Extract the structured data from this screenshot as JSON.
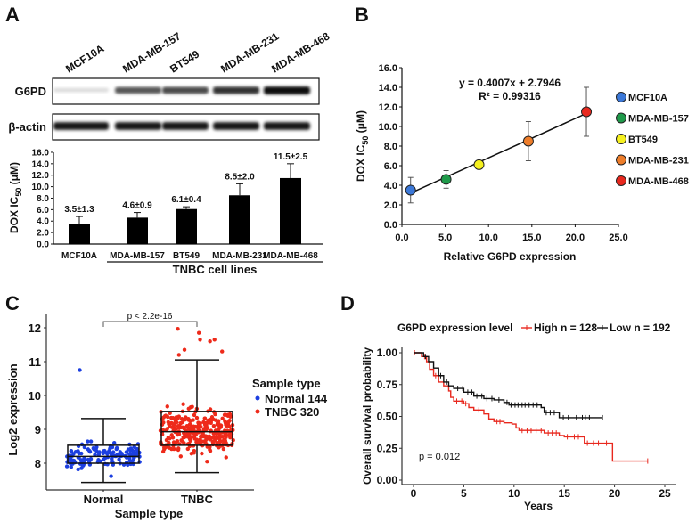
{
  "panels": {
    "a": "A",
    "b": "B",
    "c": "C",
    "d": "D"
  },
  "blot": {
    "lanes": [
      "MCF10A",
      "MDA-MB-157",
      "BT549",
      "MDA-MB-231",
      "MDA-MB-468"
    ],
    "rows": [
      {
        "label": "G6PD",
        "band_intensity": [
          0.15,
          0.7,
          0.75,
          0.85,
          1.0
        ]
      },
      {
        "label": "β-actin",
        "band_intensity": [
          0.95,
          0.95,
          0.95,
          0.95,
          0.95
        ]
      }
    ]
  },
  "chart_data": [
    {
      "id": "a-bar",
      "type": "bar",
      "categories": [
        "MCF10A",
        "MDA-MB-157",
        "BT549",
        "MDA-MB-231",
        "MDA-MB-468"
      ],
      "values": [
        3.5,
        4.6,
        6.1,
        8.5,
        11.5
      ],
      "errors": [
        1.3,
        0.9,
        0.4,
        2.0,
        2.5
      ],
      "data_labels": [
        "3.5±1.3",
        "4.6±0.9",
        "6.1±0.4",
        "8.5±2.0",
        "11.5±2.5"
      ],
      "ylabel_main": "DOX IC",
      "ylabel_sub": "50",
      "ylabel_unit": " (μM)",
      "group_label": "TNBC cell lines",
      "ylim": [
        0,
        16
      ],
      "yticks": [
        "0.0",
        "2.0",
        "4.0",
        "6.0",
        "8.0",
        "10.0",
        "12.0",
        "14.0",
        "16.0"
      ],
      "bar_color": "#000000"
    },
    {
      "id": "b-scatter",
      "type": "scatter",
      "series": [
        {
          "name": "MCF10A",
          "x": 1.0,
          "y": 3.5,
          "err": 1.3,
          "color": "#3b78d8"
        },
        {
          "name": "MDA-MB-157",
          "x": 5.1,
          "y": 4.6,
          "err": 0.9,
          "color": "#1f9a4a"
        },
        {
          "name": "BT549",
          "x": 8.9,
          "y": 6.1,
          "err": 0.4,
          "color": "#f5f01e"
        },
        {
          "name": "MDA-MB-231",
          "x": 14.6,
          "y": 8.5,
          "err": 2.0,
          "color": "#ee7d2a"
        },
        {
          "name": "MDA-MB-468",
          "x": 21.3,
          "y": 11.5,
          "err": 2.5,
          "color": "#e8281e"
        }
      ],
      "trendline": {
        "slope": 0.4007,
        "intercept": 2.7946,
        "equation": "y = 0.4007x + 2.7946",
        "r2": "R² = 0.99316"
      },
      "xlabel": "Relative G6PD expression",
      "ylabel_main": "DOX IC",
      "ylabel_sub": "50",
      "ylabel_unit": " (μM)",
      "xlim": [
        0,
        25
      ],
      "ylim": [
        0,
        16
      ],
      "xticks": [
        "0.0",
        "5.0",
        "10.0",
        "15.0",
        "20.0",
        "25.0"
      ],
      "yticks": [
        "0.0",
        "2.0",
        "4.0",
        "6.0",
        "8.0",
        "10.0",
        "12.0",
        "14.0",
        "16.0"
      ],
      "legend_position": "right"
    },
    {
      "id": "c-box",
      "type": "box",
      "categories": [
        "Normal",
        "TNBC"
      ],
      "groups": [
        {
          "name": "Normal",
          "legend": "Normal 144",
          "n": 144,
          "color": "#1c3fe0",
          "whisker_low": 7.43,
          "q1": 8.0,
          "median": 8.2,
          "q3": 8.53,
          "whisker_high": 9.32,
          "outliers": [
            10.75
          ]
        },
        {
          "name": "TNBC",
          "legend": "TNBC 320",
          "n": 320,
          "color": "#ee2a1a",
          "whisker_low": 7.72,
          "q1": 8.53,
          "median": 8.93,
          "q3": 9.53,
          "whisker_high": 11.05,
          "outliers": [
            11.2,
            11.3,
            11.65,
            11.65,
            11.85,
            11.97,
            11.35,
            11.6
          ]
        }
      ],
      "significance": "p < 2.2e-16",
      "xlabel": "Sample type",
      "ylabel": "Log2 expression",
      "legend_title": "Sample type",
      "ylim": [
        7.3,
        12.4
      ],
      "yticks": [
        "8",
        "9",
        "10",
        "11",
        "12"
      ],
      "legend_position": "right"
    },
    {
      "id": "d-km",
      "type": "line",
      "legend_title": "G6PD expression level",
      "series": [
        {
          "name": "High n = 128",
          "color": "#e8281e",
          "steps": [
            [
              0,
              1
            ],
            [
              0.8,
              0.97
            ],
            [
              1.3,
              0.93
            ],
            [
              1.6,
              0.87
            ],
            [
              2,
              0.82
            ],
            [
              2.5,
              0.77
            ],
            [
              3,
              0.74
            ],
            [
              3.5,
              0.7
            ],
            [
              3.7,
              0.65
            ],
            [
              4,
              0.62
            ],
            [
              5,
              0.6
            ],
            [
              5.5,
              0.57
            ],
            [
              6,
              0.55
            ],
            [
              7,
              0.52
            ],
            [
              7.5,
              0.48
            ],
            [
              8,
              0.46
            ],
            [
              9,
              0.45
            ],
            [
              9.8,
              0.44
            ],
            [
              10.2,
              0.41
            ],
            [
              10.5,
              0.39
            ],
            [
              12.5,
              0.39
            ],
            [
              13,
              0.37
            ],
            [
              14.5,
              0.35
            ],
            [
              15,
              0.34
            ],
            [
              17,
              0.29
            ],
            [
              19.8,
              0.15
            ],
            [
              23.3,
              0.15
            ]
          ],
          "censored": [
            0.1,
            1.1,
            2.2,
            4.3,
            4.8,
            5.2,
            6.5,
            8.3,
            8.6,
            10.8,
            11.3,
            11.7,
            12.2,
            12.7,
            13.4,
            13.8,
            14.2,
            15.3,
            16.0,
            16.4,
            17.3,
            17.9,
            18.4,
            19.2,
            23.3
          ]
        },
        {
          "name": "Low n = 192",
          "color": "#111111",
          "steps": [
            [
              0,
              1
            ],
            [
              1,
              0.97
            ],
            [
              1.5,
              0.93
            ],
            [
              2,
              0.88
            ],
            [
              2.5,
              0.82
            ],
            [
              3,
              0.77
            ],
            [
              3.5,
              0.74
            ],
            [
              4,
              0.72
            ],
            [
              5,
              0.69
            ],
            [
              6,
              0.66
            ],
            [
              7,
              0.64
            ],
            [
              8,
              0.63
            ],
            [
              9,
              0.61
            ],
            [
              9.5,
              0.59
            ],
            [
              12,
              0.59
            ],
            [
              12.7,
              0.57
            ],
            [
              13,
              0.53
            ],
            [
              14.5,
              0.49
            ],
            [
              18.8,
              0.49
            ]
          ],
          "censored": [
            1.2,
            2.7,
            3.3,
            4.4,
            4.9,
            5.4,
            5.8,
            6.3,
            6.8,
            7.3,
            7.8,
            8.5,
            9.3,
            9.7,
            10.1,
            10.4,
            10.8,
            11.1,
            11.5,
            11.9,
            12.3,
            13.2,
            13.6,
            14.0,
            14.9,
            15.4,
            16.2,
            16.8,
            17.1,
            17.5,
            18.8
          ]
        }
      ],
      "annotation": "p = 0.012",
      "xlabel": "Years",
      "ylabel": "Overall survival probability",
      "xlim": [
        0,
        25
      ],
      "ylim": [
        0,
        1
      ],
      "xticks": [
        "0",
        "5",
        "10",
        "15",
        "20",
        "25"
      ],
      "yticks": [
        "0.00",
        "0.25",
        "0.50",
        "0.75",
        "1.00"
      ],
      "legend_position": "top"
    }
  ]
}
